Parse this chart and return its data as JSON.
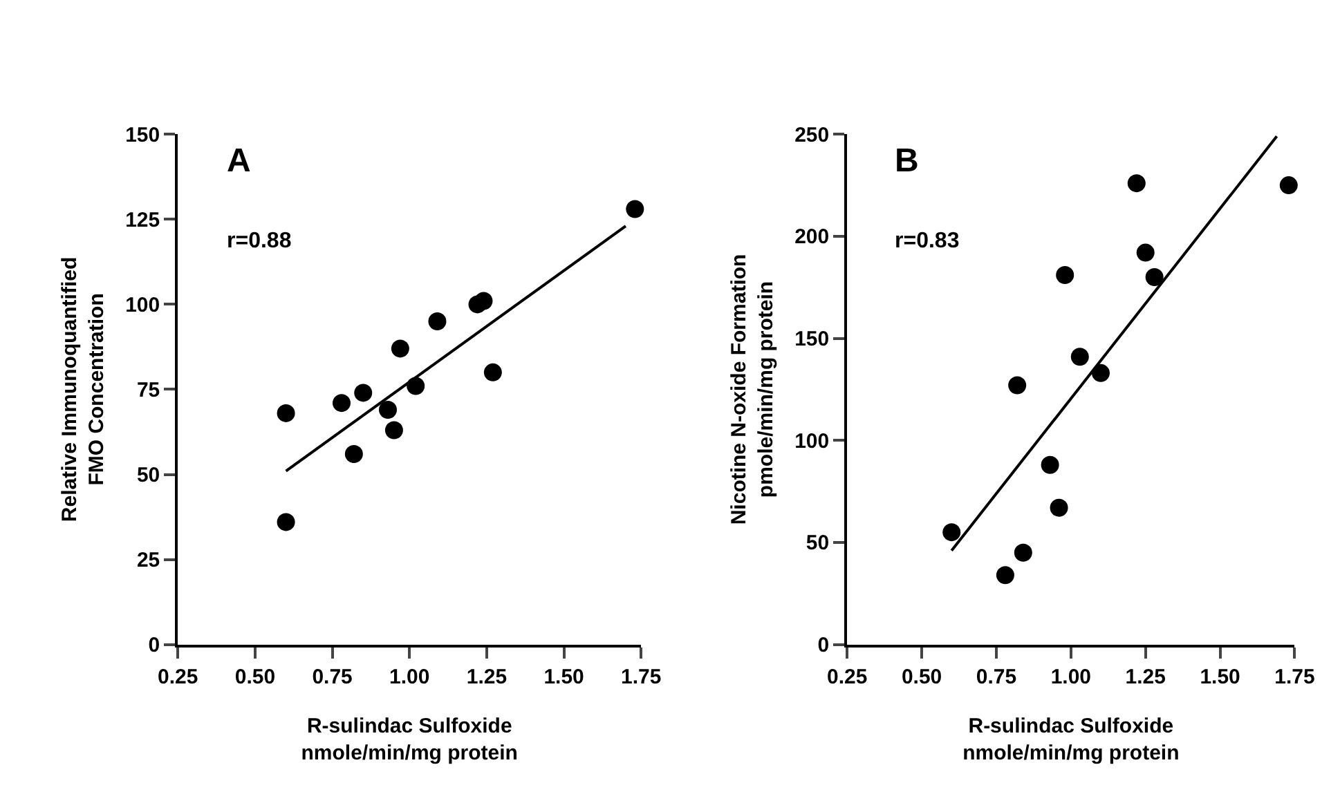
{
  "chart_data": [
    {
      "type": "scatter",
      "xlabel": "R-sulindac Sulfoxide\nnmole/min/mg protein",
      "ylabel": "Relative Immunoquantified\nFMO Concentration",
      "annotations": [
        "A",
        "r=0.88"
      ],
      "grid": false,
      "xlim": [
        0.25,
        1.75
      ],
      "xticks": [
        {
          "value": 0.25,
          "label": "0.25"
        },
        {
          "value": 0.5,
          "label": "0.50"
        },
        {
          "value": 0.75,
          "label": "0.75"
        },
        {
          "value": 1,
          "label": "1.00"
        },
        {
          "value": 1.25,
          "label": "1.25"
        },
        {
          "value": 1.5,
          "label": "1.50"
        },
        {
          "value": 1.75,
          "label": "1.75"
        }
      ],
      "ylim": [
        0,
        150
      ],
      "yticks": [
        0,
        25,
        50,
        75,
        100,
        125,
        150
      ],
      "series": [
        {
          "marker": "circle",
          "color": "#000000",
          "x": [
            0.6,
            0.6,
            0.78,
            0.82,
            0.85,
            0.93,
            0.95,
            0.97,
            1.02,
            1.09,
            1.22,
            1.24,
            1.27,
            1.73
          ],
          "values": [
            68,
            36,
            71,
            56,
            74,
            69,
            63,
            87,
            76,
            95,
            100,
            101,
            80,
            128
          ]
        },
        {
          "type": "line",
          "color": "#000000",
          "x": [
            0.6,
            1.7
          ],
          "values": [
            51,
            123
          ]
        }
      ]
    },
    {
      "type": "scatter",
      "xlabel": "R-sulindac Sulfoxide\nnmole/min/mg protein",
      "ylabel": "Nicotine N-oxide Formation\npmole/min/mg protein",
      "annotations": [
        "B",
        "r=0.83"
      ],
      "grid": false,
      "xlim": [
        0.25,
        1.75
      ],
      "xticks": [
        {
          "value": 0.25,
          "label": "0.25"
        },
        {
          "value": 0.5,
          "label": "0.50"
        },
        {
          "value": 0.75,
          "label": "0.75"
        },
        {
          "value": 1,
          "label": "1.00"
        },
        {
          "value": 1.25,
          "label": "1.25"
        },
        {
          "value": 1.5,
          "label": "1.50"
        },
        {
          "value": 1.75,
          "label": "1.75"
        }
      ],
      "ylim": [
        0,
        250
      ],
      "yticks": [
        0,
        50,
        100,
        150,
        200,
        250
      ],
      "series": [
        {
          "marker": "circle",
          "color": "#000000",
          "x": [
            0.6,
            0.78,
            0.82,
            0.84,
            0.93,
            0.96,
            0.98,
            1.03,
            1.1,
            1.22,
            1.25,
            1.28,
            1.73
          ],
          "values": [
            55,
            34,
            127,
            45,
            88,
            67,
            181,
            141,
            133,
            226,
            192,
            180,
            225
          ]
        },
        {
          "type": "line",
          "color": "#000000",
          "x": [
            0.6,
            1.69
          ],
          "values": [
            46,
            249
          ]
        }
      ]
    }
  ]
}
